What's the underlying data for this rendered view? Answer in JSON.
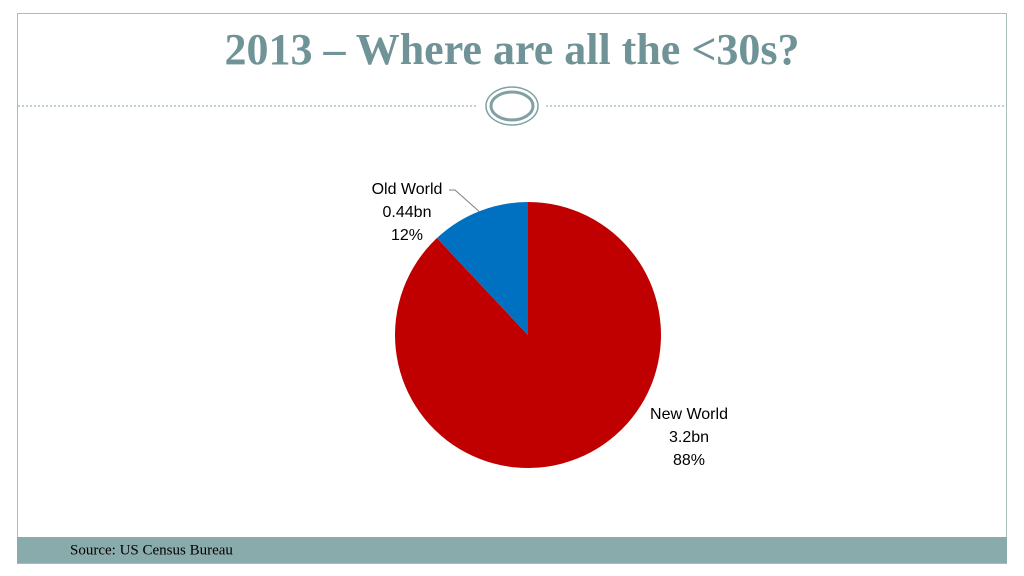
{
  "chart_data": {
    "type": "pie",
    "title": "2013 – Where are all the <30s?",
    "source": "Source: US Census Bureau",
    "categories": [
      "New World",
      "Old World"
    ],
    "values": [
      88,
      12
    ],
    "value_labels": [
      "88%",
      "12%"
    ],
    "amounts": [
      3.2,
      0.44
    ],
    "amount_labels": [
      "3.2bn",
      "0.44bn"
    ],
    "colors": [
      "#c00000",
      "#0070c0"
    ]
  }
}
